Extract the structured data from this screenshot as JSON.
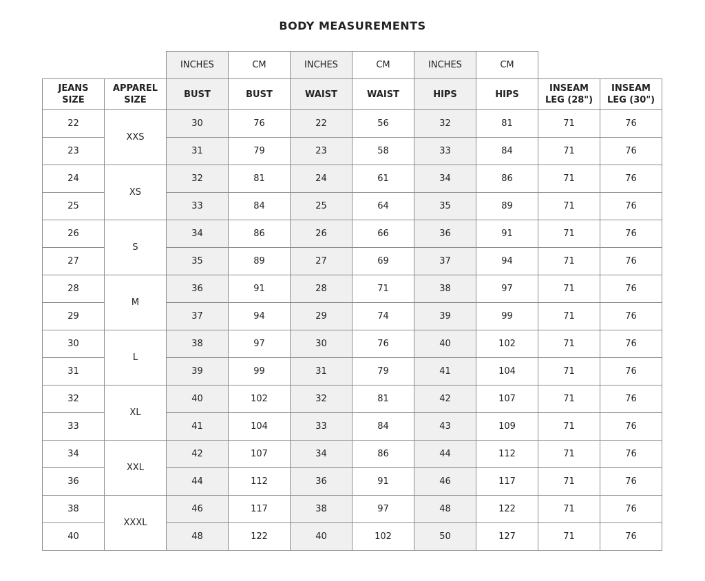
{
  "title": "BODY MEASUREMENTS",
  "colors": {
    "shaded_column": "#f0f0f0",
    "grid": "#8a8a8a"
  },
  "unit_row": [
    "",
    "",
    "INCHES",
    "CM",
    "INCHES",
    "CM",
    "INCHES",
    "CM",
    "",
    ""
  ],
  "headers": [
    "JEANS SIZE",
    "APPAREL SIZE",
    "BUST",
    "BUST",
    "WAIST",
    "WAIST",
    "HIPS",
    "HIPS",
    "INSEAM LEG (28\")",
    "INSEAM LEG (30\")"
  ],
  "shaded_columns": [
    2,
    4,
    6
  ],
  "rows": [
    {
      "jeans": "22",
      "apparel": "XXS",
      "v": [
        "30",
        "76",
        "22",
        "56",
        "32",
        "81",
        "71",
        "76"
      ]
    },
    {
      "jeans": "23",
      "v": [
        "31",
        "79",
        "23",
        "58",
        "33",
        "84",
        "71",
        "76"
      ]
    },
    {
      "jeans": "24",
      "apparel": "XS",
      "v": [
        "32",
        "81",
        "24",
        "61",
        "34",
        "86",
        "71",
        "76"
      ]
    },
    {
      "jeans": "25",
      "v": [
        "33",
        "84",
        "25",
        "64",
        "35",
        "89",
        "71",
        "76"
      ]
    },
    {
      "jeans": "26",
      "apparel": "S",
      "v": [
        "34",
        "86",
        "26",
        "66",
        "36",
        "91",
        "71",
        "76"
      ]
    },
    {
      "jeans": "27",
      "v": [
        "35",
        "89",
        "27",
        "69",
        "37",
        "94",
        "71",
        "76"
      ]
    },
    {
      "jeans": "28",
      "apparel": "M",
      "v": [
        "36",
        "91",
        "28",
        "71",
        "38",
        "97",
        "71",
        "76"
      ]
    },
    {
      "jeans": "29",
      "v": [
        "37",
        "94",
        "29",
        "74",
        "39",
        "99",
        "71",
        "76"
      ]
    },
    {
      "jeans": "30",
      "apparel": "L",
      "v": [
        "38",
        "97",
        "30",
        "76",
        "40",
        "102",
        "71",
        "76"
      ]
    },
    {
      "jeans": "31",
      "v": [
        "39",
        "99",
        "31",
        "79",
        "41",
        "104",
        "71",
        "76"
      ]
    },
    {
      "jeans": "32",
      "apparel": "XL",
      "v": [
        "40",
        "102",
        "32",
        "81",
        "42",
        "107",
        "71",
        "76"
      ]
    },
    {
      "jeans": "33",
      "v": [
        "41",
        "104",
        "33",
        "84",
        "43",
        "109",
        "71",
        "76"
      ]
    },
    {
      "jeans": "34",
      "apparel": "XXL",
      "v": [
        "42",
        "107",
        "34",
        "86",
        "44",
        "112",
        "71",
        "76"
      ]
    },
    {
      "jeans": "36",
      "v": [
        "44",
        "112",
        "36",
        "91",
        "46",
        "117",
        "71",
        "76"
      ]
    },
    {
      "jeans": "38",
      "apparel": "XXXL",
      "v": [
        "46",
        "117",
        "38",
        "97",
        "48",
        "122",
        "71",
        "76"
      ]
    },
    {
      "jeans": "40",
      "v": [
        "48",
        "122",
        "40",
        "102",
        "50",
        "127",
        "71",
        "76"
      ]
    }
  ]
}
